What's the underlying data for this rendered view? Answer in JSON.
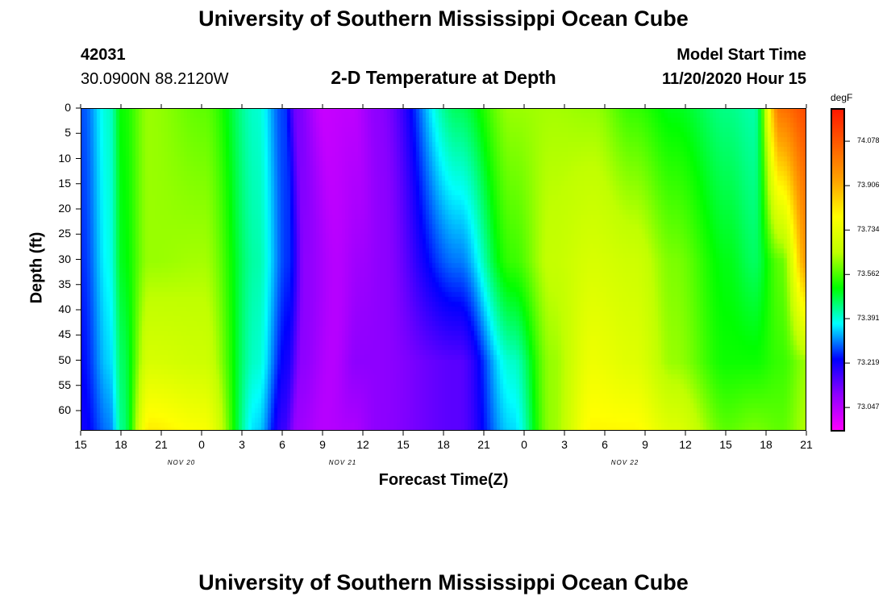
{
  "header": {
    "title_top": "University of Southern Mississippi Ocean Cube",
    "title_bottom": "University of Southern Mississippi Ocean Cube",
    "station_id": "42031",
    "station_coords": "30.0900N 88.2120W",
    "plot_title": "2-D Temperature at Depth",
    "model_label": "Model Start Time",
    "model_start": "11/20/2020 Hour 15"
  },
  "chart_data": {
    "type": "heatmap",
    "title": "2-D Temperature at Depth",
    "xlabel": "Forecast Time(Z)",
    "ylabel": "Depth (ft)",
    "x_ticks": [
      "15",
      "18",
      "21",
      "0",
      "3",
      "6",
      "9",
      "12",
      "15",
      "18",
      "21",
      "0",
      "3",
      "6",
      "9",
      "12",
      "15",
      "18",
      "21"
    ],
    "date_labels": [
      {
        "label": "NOV 20",
        "at_tick": 2
      },
      {
        "label": "NOV 21",
        "at_tick": 6
      },
      {
        "label": "NOV 22",
        "at_tick": 13
      }
    ],
    "y_ticks": [
      "0",
      "5",
      "10",
      "15",
      "20",
      "25",
      "30",
      "35",
      "40",
      "45",
      "50",
      "55",
      "60"
    ],
    "ylim": [
      0,
      64
    ],
    "x_hours": [
      0,
      54
    ],
    "colorbar": {
      "unit": "degF",
      "labels": [
        "74.078",
        "73.906",
        "73.734",
        "73.562",
        "73.391",
        "73.219",
        "73.047"
      ],
      "colors": [
        "#ff00ff",
        "#9000ff",
        "#0000ff",
        "#00ffff",
        "#00ff00",
        "#c0ff00",
        "#ffff00",
        "#ffa500",
        "#ff6000",
        "#ff1a00"
      ],
      "range": [
        72.96,
        74.2
      ]
    },
    "profile_hours": [
      0,
      2,
      3,
      5,
      9,
      13,
      15,
      16,
      18,
      20,
      22,
      28,
      32,
      35,
      38,
      41,
      44,
      48,
      50,
      52,
      54
    ],
    "profile_depths": [
      0,
      30,
      50,
      64
    ],
    "profile_temps_degF": [
      [
        73.28,
        73.26,
        73.24,
        73.22
      ],
      [
        73.4,
        73.38,
        73.35,
        73.3
      ],
      [
        73.52,
        73.5,
        73.46,
        73.44
      ],
      [
        73.62,
        73.62,
        73.7,
        73.82
      ],
      [
        73.58,
        73.63,
        73.68,
        73.78
      ],
      [
        73.4,
        73.42,
        73.4,
        73.35
      ],
      [
        73.27,
        73.26,
        73.22,
        73.18
      ],
      [
        73.12,
        73.1,
        73.1,
        73.08
      ],
      [
        73.03,
        73.05,
        73.05,
        73.05
      ],
      [
        73.04,
        73.08,
        73.1,
        73.06
      ],
      [
        73.1,
        73.1,
        73.1,
        73.1
      ],
      [
        73.46,
        73.3,
        73.15,
        73.15
      ],
      [
        73.62,
        73.55,
        73.4,
        73.35
      ],
      [
        73.63,
        73.66,
        73.62,
        73.62
      ],
      [
        73.62,
        73.7,
        73.75,
        73.8
      ],
      [
        73.55,
        73.68,
        73.72,
        73.8
      ],
      [
        73.5,
        73.6,
        73.62,
        73.72
      ],
      [
        73.44,
        73.5,
        73.52,
        73.58
      ],
      [
        73.42,
        73.46,
        73.52,
        73.6
      ],
      [
        74.02,
        73.58,
        73.55,
        73.58
      ],
      [
        74.1,
        73.95,
        73.62,
        73.64
      ]
    ]
  }
}
